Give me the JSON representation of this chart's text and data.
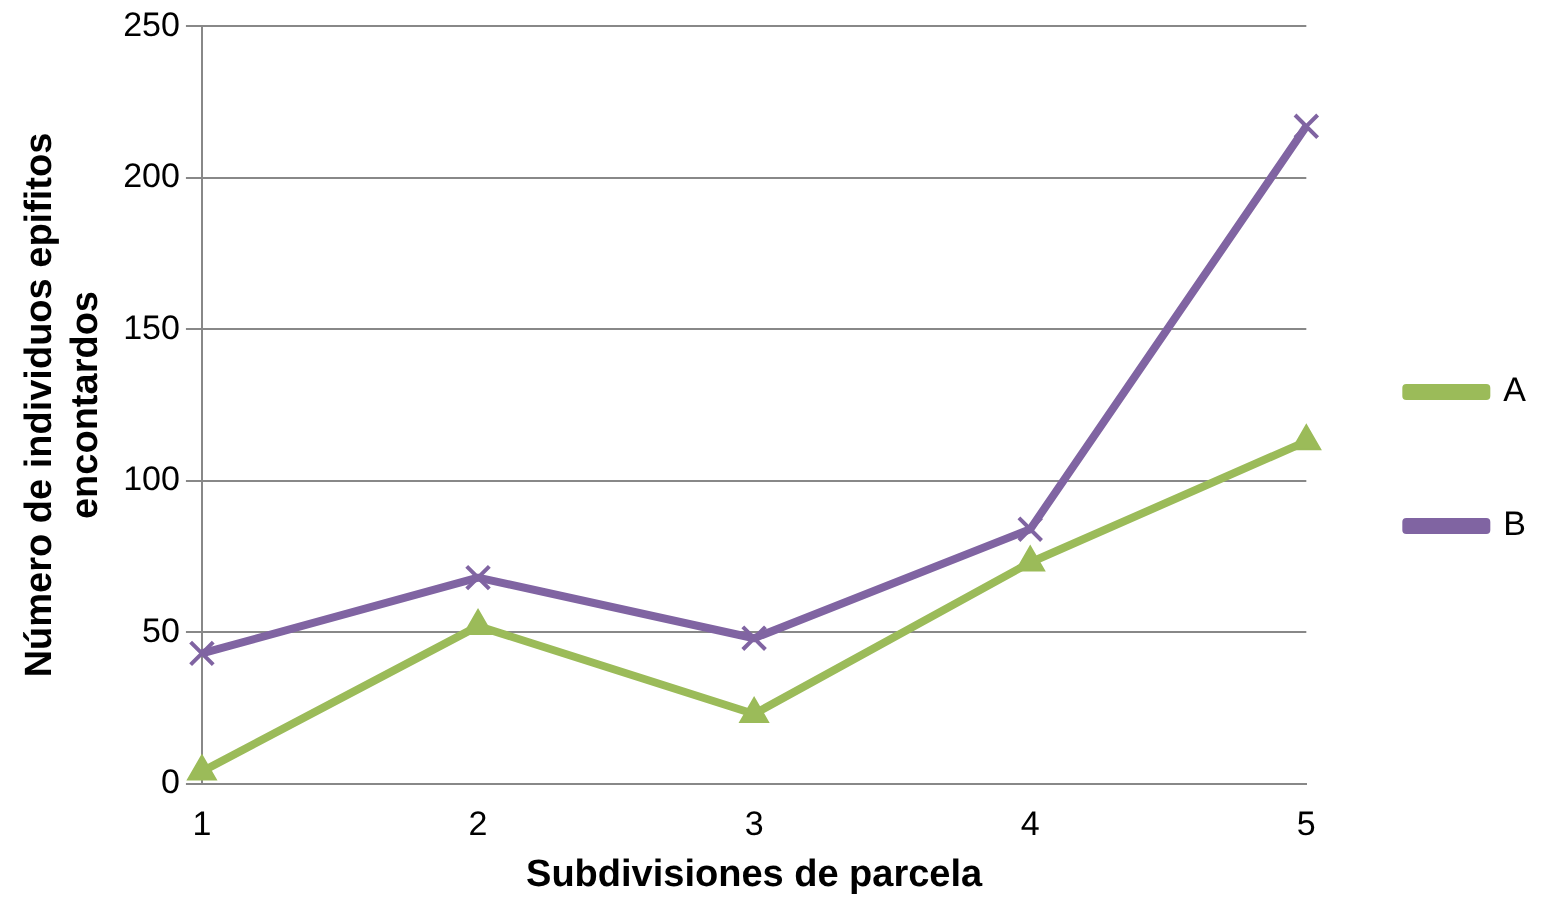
{
  "chart_data": {
    "type": "line",
    "xlabel": "Subdivisiones de parcela",
    "ylabel": "Número de individuos epifitos\nencontardos",
    "categories": [
      "1",
      "2",
      "3",
      "4",
      "5"
    ],
    "series": [
      {
        "name": "A",
        "color": "#9bbb59",
        "values": [
          4,
          52,
          23,
          73,
          113
        ],
        "marker": "triangle"
      },
      {
        "name": "B",
        "color": "#8064a2",
        "values": [
          43,
          68,
          48,
          84,
          217
        ],
        "marker": "cross"
      }
    ],
    "ylim": [
      0,
      250
    ],
    "yticks": [
      0,
      50,
      100,
      150,
      200,
      250
    ],
    "grid": "y",
    "legend": "right",
    "line_style": "solid"
  }
}
